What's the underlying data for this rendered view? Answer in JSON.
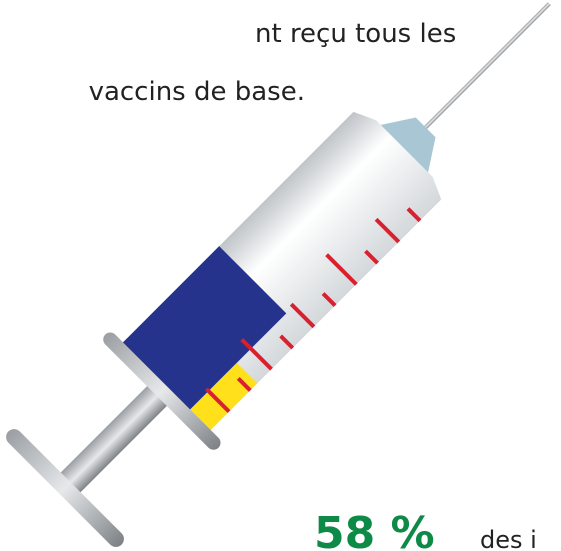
{
  "texts": {
    "line1": "nt reçu tous les",
    "line2": "vaccins de base.",
    "percent": "58 %",
    "suffix": "des i"
  }
}
